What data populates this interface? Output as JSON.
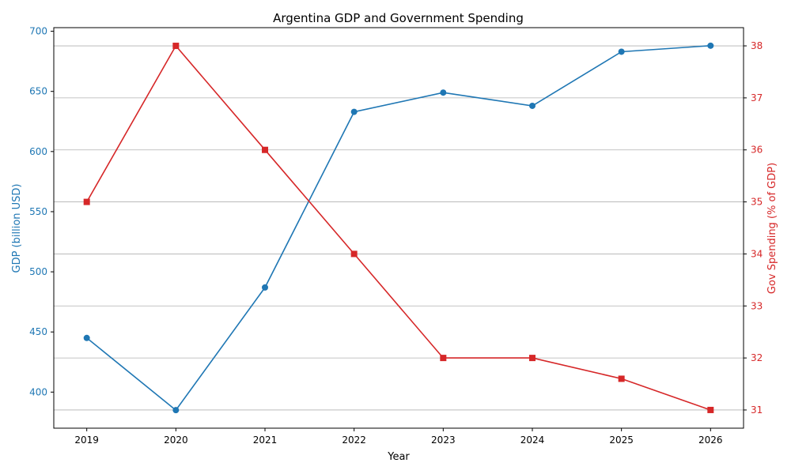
{
  "chart_data": {
    "type": "line",
    "title": "Argentina GDP and Government Spending",
    "xlabel": "Year",
    "categories": [
      "2019",
      "2020",
      "2021",
      "2022",
      "2023",
      "2024",
      "2025",
      "2026"
    ],
    "x": [
      2019,
      2020,
      2021,
      2022,
      2023,
      2024,
      2025,
      2026
    ],
    "xlim": [
      2018.63,
      2026.37
    ],
    "grid": "horizontal, right axis",
    "series": [
      {
        "axis": "left",
        "color": "#1f77b4",
        "marker": "circle",
        "values": [
          445,
          385,
          487,
          633,
          649,
          638,
          683,
          688
        ]
      },
      {
        "axis": "right",
        "color": "#d62728",
        "marker": "square",
        "values": [
          35.0,
          38.0,
          36.0,
          34.0,
          32.0,
          32.0,
          31.6,
          31.0
        ]
      }
    ],
    "y_left": {
      "label": "GDP (billion USD)",
      "color": "#1f77b4",
      "ylim": [
        370,
        703
      ],
      "ticks": [
        400,
        450,
        500,
        550,
        600,
        650,
        700
      ]
    },
    "y_right": {
      "label": "Gov Spending (% of GDP)",
      "color": "#d62728",
      "ylim": [
        30.65,
        38.35
      ],
      "ticks": [
        31,
        32,
        33,
        34,
        35,
        36,
        37,
        38
      ]
    }
  }
}
